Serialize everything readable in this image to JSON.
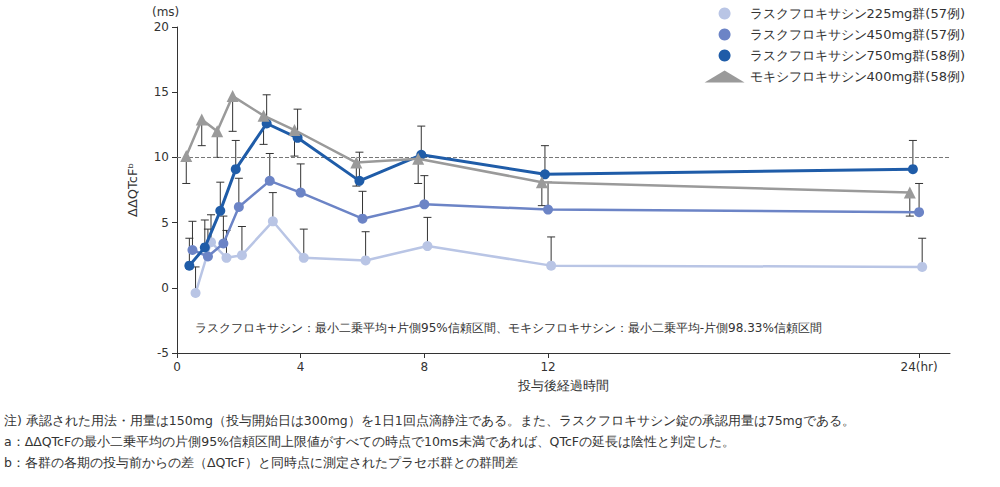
{
  "chart_data": {
    "type": "line",
    "y_unit": "(ms)",
    "ylabel": "ΔΔQTcFᵇ",
    "xlabel": "投与後経過時間",
    "annotation": "ラスクフロキサシン：最小二乗平均+片側95%信頼区間、モキシフロキサシン：最小二乗平均-片側98.33%信頼区間",
    "notes": [
      "注) 承認された用法・用量は150mg（投与開始日は300mg）を1日1回点滴静注である。また、ラスクフロキサシン錠の承認用量は75mgである。",
      "a：ΔΔQTcFの最小二乗平均の片側95%信頼区間上限値がすべての時点で10ms未満であれば、QTcFの延長は陰性と判定した。",
      "b：各群の各期の投与前からの差（ΔQTcF）と同時点に測定されたプラセボ群との群間差"
    ],
    "xlim": [
      0,
      25
    ],
    "xticks": [
      0,
      4,
      8,
      12,
      {
        "value": 24,
        "label": "24(hr)"
      }
    ],
    "ylim": [
      -5,
      20
    ],
    "yticks": [
      -5,
      0,
      5,
      10,
      15,
      20
    ],
    "grid": false,
    "legend": "top-right",
    "reference_line": {
      "y": 10,
      "line_style": "dashed"
    },
    "series": [
      {
        "name": "ラスクフロキサシン225mg群(57例)",
        "color": "#b9c5e5",
        "marker": "circle",
        "x": [
          0.6,
          1.1,
          1.6,
          2.1,
          3.1,
          4.1,
          6.1,
          8.1,
          12.1,
          24.1
        ],
        "values": [
          -0.4,
          3.5,
          2.3,
          2.5,
          5.1,
          2.3,
          2.1,
          3.2,
          1.7,
          1.6
        ],
        "ci_bound": [
          1.6,
          5.6,
          4.4,
          4.7,
          7.3,
          4.5,
          4.3,
          5.4,
          3.9,
          3.8
        ]
      },
      {
        "name": "ラスクフロキサシン450mg群(57例)",
        "color": "#6c84c6",
        "marker": "circle",
        "x": [
          0.5,
          1.0,
          1.5,
          2.0,
          3.0,
          4.0,
          6.0,
          8.0,
          12.0,
          24.0
        ],
        "values": [
          2.9,
          2.4,
          3.4,
          6.2,
          8.2,
          7.3,
          5.3,
          6.4,
          6.0,
          5.8
        ],
        "ci_bound": [
          5.1,
          4.5,
          5.5,
          8.4,
          10.3,
          9.5,
          7.4,
          8.6,
          8.1,
          8.0
        ]
      },
      {
        "name": "ラスクフロキサシン750mg群(58例)",
        "color": "#1f5ca8",
        "marker": "circle",
        "x": [
          0.4,
          0.9,
          1.4,
          1.9,
          2.9,
          3.9,
          5.9,
          7.9,
          11.9,
          23.8
        ],
        "values": [
          1.7,
          3.1,
          5.9,
          9.1,
          12.6,
          11.5,
          8.2,
          10.2,
          8.7,
          9.1
        ],
        "ci_bound": [
          3.8,
          5.2,
          8.1,
          11.3,
          14.8,
          13.7,
          10.4,
          12.4,
          10.9,
          11.3
        ]
      },
      {
        "name": "モキシフロキサシン400mg群(58例)",
        "color": "#9a9a9a",
        "marker": "triangle",
        "x": [
          0.3,
          0.8,
          1.3,
          1.8,
          2.8,
          3.8,
          5.8,
          7.8,
          11.8,
          23.7
        ],
        "values": [
          10.1,
          12.9,
          12.0,
          14.7,
          13.2,
          12.1,
          9.6,
          9.9,
          8.1,
          7.3
        ],
        "ci_bound": [
          8.0,
          10.9,
          10.0,
          12.0,
          11.0,
          10.1,
          7.8,
          8.0,
          6.3,
          5.5
        ]
      }
    ]
  }
}
